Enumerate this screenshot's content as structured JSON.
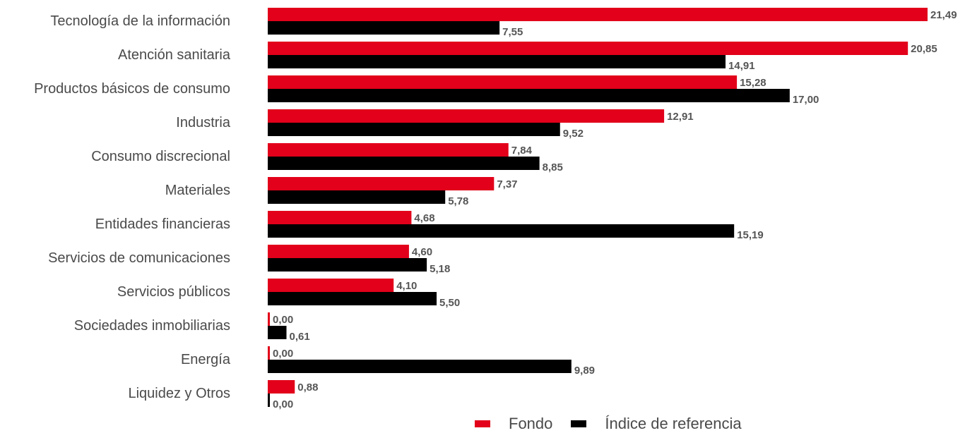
{
  "chart_data": {
    "type": "bar",
    "orientation": "horizontal",
    "categories": [
      "Tecnología de la información",
      "Atención sanitaria",
      "Productos básicos de consumo",
      "Industria",
      "Consumo discrecional",
      "Materiales",
      "Entidades financieras",
      "Servicios de comunicaciones",
      "Servicios públicos",
      "Sociedades inmobiliarias",
      "Energía",
      "Liquidez y Otros"
    ],
    "series": [
      {
        "name": "Fondo",
        "color": "#e2001a",
        "values": [
          21.49,
          20.85,
          15.28,
          12.91,
          7.84,
          7.37,
          4.68,
          4.6,
          4.1,
          0.0,
          0.0,
          0.88
        ],
        "labels": [
          "21,49",
          "20,85",
          "15,28",
          "12,91",
          "7,84",
          "7,37",
          "4,68",
          "4,60",
          "4,10",
          "0,00",
          "0,00",
          "0,88"
        ]
      },
      {
        "name": "Índice de referencia",
        "color": "#000000",
        "values": [
          7.55,
          14.91,
          17.0,
          9.52,
          8.85,
          5.78,
          15.19,
          5.18,
          5.5,
          0.61,
          9.89,
          0.0
        ],
        "labels": [
          "7,55",
          "14,91",
          "17,00",
          "9,52",
          "8,85",
          "5,78",
          "15,19",
          "5,18",
          "5,50",
          "0,61",
          "9,89",
          "0,00"
        ]
      }
    ],
    "xlim": [
      0,
      21.49
    ],
    "grid": false,
    "legend_position": "bottom"
  }
}
